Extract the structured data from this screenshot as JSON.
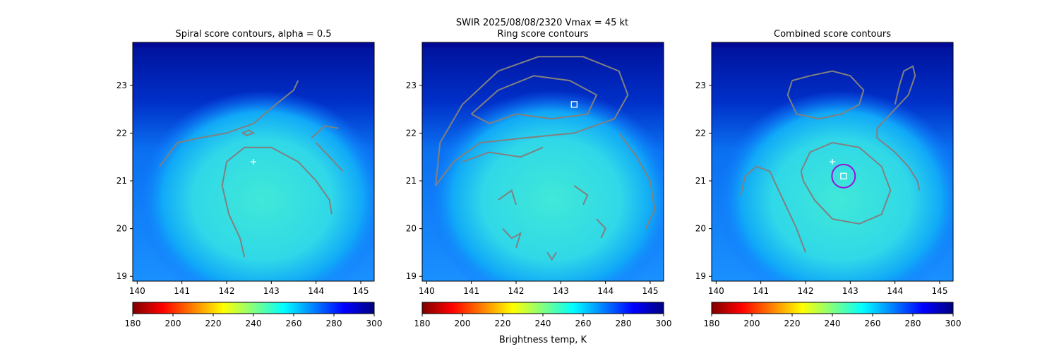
{
  "figure": {
    "suptitle_line1": "SWIR  2025/08/08/2320    Vmax = 45 kt",
    "colorbar_label": "Brightness temp, K"
  },
  "colors": {
    "contour": "#808080",
    "marker": "#ffffff",
    "circle": "#9b10d8",
    "background_cold": "#00008f"
  },
  "colormap": [
    "#800000",
    "#ff0000",
    "#ff8000",
    "#ffff00",
    "#80ff80",
    "#00ffff",
    "#0080ff",
    "#0000ff",
    "#000080"
  ],
  "colorbar": {
    "min": 180,
    "max": 300,
    "ticks": [
      "180",
      "200",
      "220",
      "240",
      "260",
      "280",
      "300"
    ]
  },
  "chart_data": [
    {
      "type": "heatmap",
      "title": "Spiral score contours, alpha =  0.5",
      "xlim": [
        139.9,
        145.3
      ],
      "ylim": [
        18.9,
        23.9
      ],
      "x_ticks": [
        "140",
        "141",
        "142",
        "143",
        "144",
        "145"
      ],
      "y_ticks": [
        "19",
        "20",
        "21",
        "22",
        "23"
      ],
      "markers": [
        {
          "shape": "plus",
          "x": 142.6,
          "y": 21.4
        }
      ],
      "contours": [
        [
          [
            140.5,
            21.3
          ],
          [
            140.9,
            21.8
          ],
          [
            141.4,
            21.9
          ],
          [
            142.0,
            22.0
          ],
          [
            142.6,
            22.2
          ],
          [
            143.1,
            22.6
          ],
          [
            143.5,
            22.9
          ],
          [
            143.6,
            23.1
          ]
        ],
        [
          [
            142.35,
            22.0
          ],
          [
            142.5,
            22.06
          ],
          [
            142.6,
            22.0
          ],
          [
            142.45,
            21.95
          ],
          [
            142.35,
            22.0
          ]
        ],
        [
          [
            142.4,
            19.4
          ],
          [
            142.3,
            19.8
          ],
          [
            142.05,
            20.3
          ],
          [
            141.9,
            20.9
          ],
          [
            142.0,
            21.4
          ],
          [
            142.4,
            21.7
          ],
          [
            143.0,
            21.7
          ],
          [
            143.6,
            21.4
          ],
          [
            144.0,
            21.0
          ],
          [
            144.3,
            20.6
          ],
          [
            144.35,
            20.3
          ]
        ],
        [
          [
            143.9,
            21.9
          ],
          [
            144.2,
            22.15
          ],
          [
            144.5,
            22.1
          ]
        ],
        [
          [
            144.0,
            21.8
          ],
          [
            144.3,
            21.5
          ],
          [
            144.6,
            21.2
          ]
        ]
      ]
    },
    {
      "type": "heatmap",
      "title": "Ring score contours",
      "xlim": [
        139.9,
        145.3
      ],
      "ylim": [
        18.9,
        23.9
      ],
      "x_ticks": [
        "140",
        "141",
        "142",
        "143",
        "144",
        "145"
      ],
      "y_ticks": [
        "19",
        "20",
        "21",
        "22",
        "23"
      ],
      "markers": [
        {
          "shape": "square",
          "x": 143.3,
          "y": 22.6
        }
      ],
      "contours": [
        [
          [
            140.2,
            20.9
          ],
          [
            140.3,
            21.8
          ],
          [
            140.8,
            22.6
          ],
          [
            141.6,
            23.3
          ],
          [
            142.5,
            23.6
          ],
          [
            143.5,
            23.6
          ],
          [
            144.3,
            23.3
          ],
          [
            144.5,
            22.8
          ],
          [
            144.2,
            22.3
          ],
          [
            143.3,
            22.0
          ],
          [
            142.2,
            21.9
          ],
          [
            141.2,
            21.8
          ],
          [
            140.6,
            21.4
          ],
          [
            140.2,
            20.9
          ]
        ],
        [
          [
            141.0,
            22.4
          ],
          [
            141.6,
            22.9
          ],
          [
            142.4,
            23.2
          ],
          [
            143.2,
            23.1
          ],
          [
            143.8,
            22.8
          ],
          [
            143.6,
            22.4
          ],
          [
            142.8,
            22.3
          ],
          [
            142.0,
            22.4
          ],
          [
            141.4,
            22.2
          ],
          [
            141.0,
            22.4
          ]
        ],
        [
          [
            144.3,
            22.0
          ],
          [
            144.7,
            21.5
          ],
          [
            145.0,
            21.0
          ],
          [
            145.1,
            20.4
          ],
          [
            144.9,
            20.0
          ]
        ],
        [
          [
            140.8,
            21.4
          ],
          [
            141.4,
            21.6
          ],
          [
            142.1,
            21.5
          ],
          [
            142.6,
            21.7
          ]
        ],
        [
          [
            141.6,
            20.6
          ],
          [
            141.9,
            20.8
          ],
          [
            142.0,
            20.5
          ]
        ],
        [
          [
            141.7,
            20.0
          ],
          [
            141.9,
            19.8
          ],
          [
            142.1,
            19.9
          ],
          [
            142.0,
            19.6
          ]
        ],
        [
          [
            142.7,
            19.5
          ],
          [
            142.8,
            19.35
          ],
          [
            142.9,
            19.5
          ]
        ],
        [
          [
            143.3,
            20.9
          ],
          [
            143.6,
            20.7
          ],
          [
            143.5,
            20.5
          ]
        ],
        [
          [
            143.8,
            20.2
          ],
          [
            144.0,
            20.0
          ],
          [
            143.9,
            19.8
          ]
        ]
      ]
    },
    {
      "type": "heatmap",
      "title": "Combined score contours",
      "xlim": [
        139.9,
        145.3
      ],
      "ylim": [
        18.9,
        23.9
      ],
      "x_ticks": [
        "140",
        "141",
        "142",
        "143",
        "144",
        "145"
      ],
      "y_ticks": [
        "19",
        "20",
        "21",
        "22",
        "23"
      ],
      "markers": [
        {
          "shape": "plus",
          "x": 142.6,
          "y": 21.4
        },
        {
          "shape": "square",
          "x": 142.85,
          "y": 21.1
        },
        {
          "shape": "circle",
          "x": 142.85,
          "y": 21.1,
          "r": 0.26
        }
      ],
      "contours": [
        [
          [
            141.7,
            23.1
          ],
          [
            142.1,
            23.2
          ],
          [
            142.6,
            23.3
          ],
          [
            143.0,
            23.2
          ],
          [
            143.3,
            22.9
          ],
          [
            143.2,
            22.6
          ],
          [
            142.8,
            22.4
          ],
          [
            142.3,
            22.3
          ],
          [
            141.8,
            22.4
          ],
          [
            141.6,
            22.8
          ],
          [
            141.7,
            23.1
          ]
        ],
        [
          [
            141.9,
            21.2
          ],
          [
            142.1,
            21.6
          ],
          [
            142.6,
            21.8
          ],
          [
            143.2,
            21.7
          ],
          [
            143.7,
            21.3
          ],
          [
            143.9,
            20.8
          ],
          [
            143.7,
            20.3
          ],
          [
            143.2,
            20.1
          ],
          [
            142.6,
            20.2
          ],
          [
            142.2,
            20.6
          ],
          [
            141.95,
            21.0
          ],
          [
            141.9,
            21.2
          ]
        ],
        [
          [
            140.55,
            20.7
          ],
          [
            140.65,
            21.1
          ],
          [
            140.9,
            21.3
          ],
          [
            141.2,
            21.2
          ],
          [
            141.5,
            20.6
          ],
          [
            141.8,
            20.0
          ],
          [
            142.0,
            19.5
          ]
        ],
        [
          [
            144.0,
            22.6
          ],
          [
            144.1,
            23.0
          ],
          [
            144.2,
            23.3
          ],
          [
            144.4,
            23.4
          ],
          [
            144.45,
            23.2
          ],
          [
            144.3,
            22.8
          ],
          [
            144.0,
            22.5
          ],
          [
            143.6,
            22.1
          ],
          [
            143.6,
            21.9
          ],
          [
            144.0,
            21.6
          ],
          [
            144.3,
            21.3
          ],
          [
            144.5,
            21.0
          ],
          [
            144.55,
            20.8
          ]
        ]
      ]
    }
  ]
}
